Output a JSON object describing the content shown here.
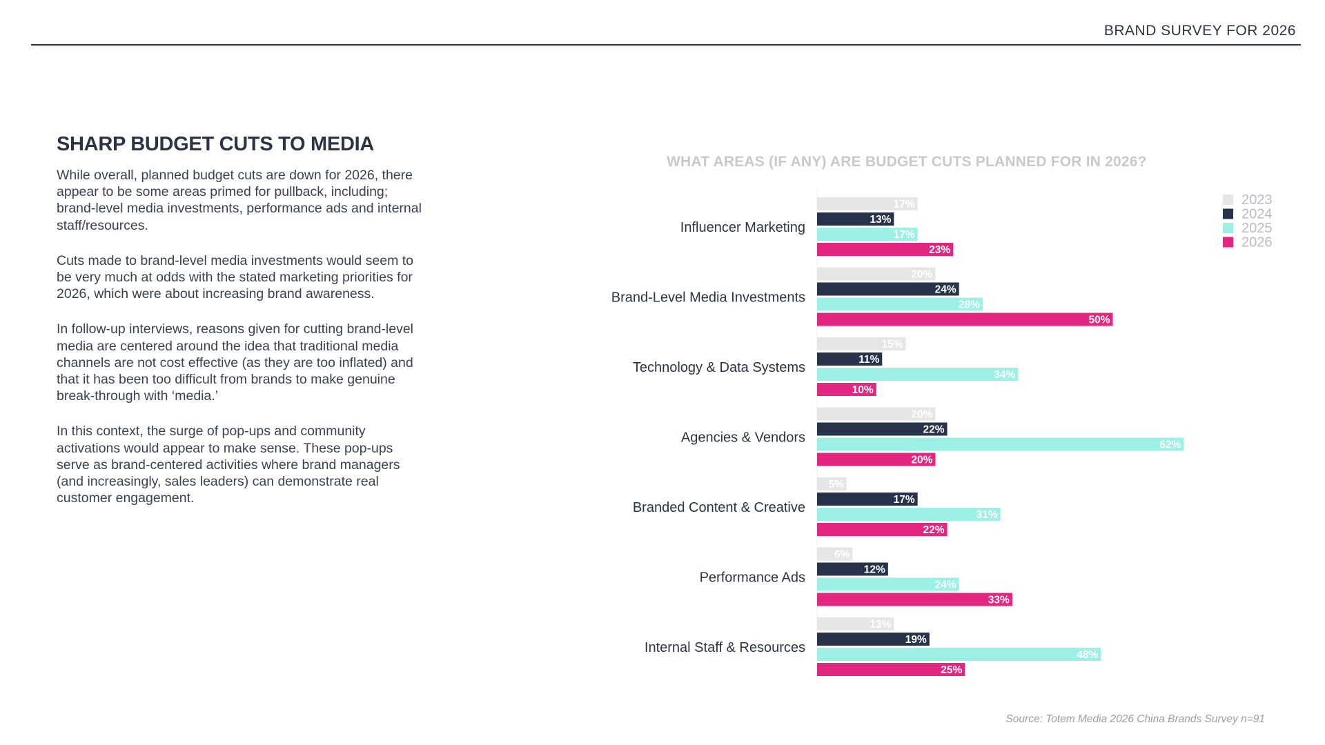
{
  "header": {
    "title": "BRAND SURVEY FOR 2026"
  },
  "left": {
    "title": "SHARP BUDGET CUTS TO MEDIA",
    "paragraphs": [
      "While overall, planned budget cuts are down for 2026, there appear to be some areas primed for pullback, including; brand-level media investments, performance ads and internal staff/resources.",
      "Cuts made to brand-level media investments would seem to be very much at odds with the stated marketing priorities for 2026, which were about increasing brand awareness.",
      "In follow-up interviews, reasons given for cutting brand-level media are centered around the idea that traditional media channels are not cost effective (as they are too inflated) and that it has been too difficult from brands to make genuine break-through with ‘media.’",
      "In this context, the surge of pop-ups and community activations would appear to make sense. These pop-ups serve as brand-centered activities where brand managers (and increasingly, sales leaders) can demonstrate real customer engagement."
    ]
  },
  "source": "Source: Totem Media 2026 China Brands Survey n=91",
  "chart_data": {
    "type": "bar",
    "orientation": "horizontal",
    "title": "WHAT AREAS (IF ANY) ARE BUDGET CUTS PLANNED FOR IN 2026?",
    "categories": [
      "Influencer Marketing",
      "Brand-Level Media Investments",
      "Technology & Data Systems",
      "Agencies & Vendors",
      "Branded Content & Creative",
      "Performance Ads",
      "Internal Staff & Resources"
    ],
    "series": [
      {
        "name": "2023",
        "color": "#e6e6e6",
        "label_color": "#ffffff",
        "values": [
          17,
          20,
          15,
          20,
          5,
          6,
          13
        ]
      },
      {
        "name": "2024",
        "color": "#27334a",
        "label_color": "#ffffff",
        "values": [
          13,
          24,
          11,
          22,
          17,
          12,
          19
        ]
      },
      {
        "name": "2025",
        "color": "#9cf0e6",
        "label_color": "#ffffff",
        "values": [
          17,
          28,
          34,
          62,
          31,
          24,
          48
        ]
      },
      {
        "name": "2026",
        "color": "#e3267f",
        "label_color": "#ffffff",
        "values": [
          23,
          50,
          10,
          20,
          22,
          33,
          25
        ]
      }
    ],
    "value_suffix": "%",
    "xlim": [
      0,
      100
    ],
    "legend_position": "top-right",
    "grid": false
  }
}
